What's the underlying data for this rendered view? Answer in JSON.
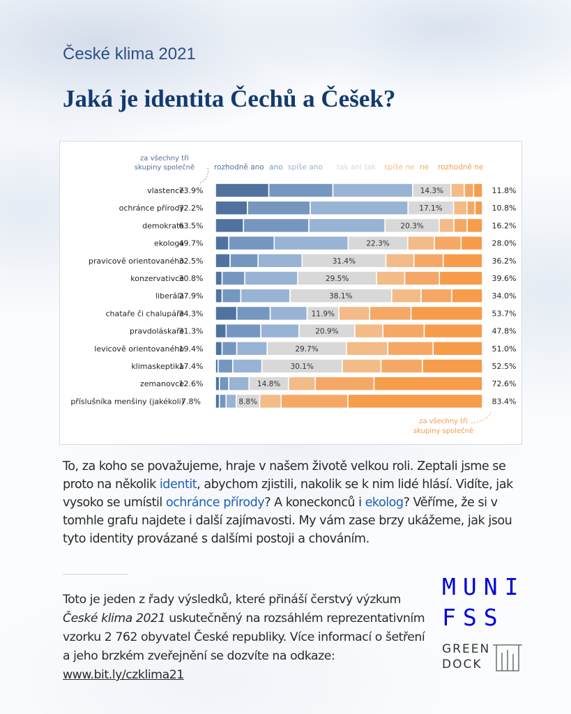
{
  "header": {
    "subtitle": "České klima 2021",
    "title": "Jaká je identita Čechů a Češek?"
  },
  "chart_data": {
    "type": "bar",
    "orientation": "horizontal",
    "stacked": true,
    "normalized": true,
    "annotation_left": [
      "za všechny tři",
      "skupiny společně"
    ],
    "annotation_right": [
      "za všechny tři",
      "skupiny společně"
    ],
    "legend": [
      {
        "name": "rozhodně ano",
        "color": "#4f739e"
      },
      {
        "name": "ano",
        "color": "#7597bf"
      },
      {
        "name": "spíše ano",
        "color": "#98b3d3"
      },
      {
        "name": "tak ani tak",
        "color": "#d8d8d8"
      },
      {
        "name": "spíše ne",
        "color": "#f2bb87"
      },
      {
        "name": "ne",
        "color": "#f5a865"
      },
      {
        "name": "rozhodně ne",
        "color": "#f69c4b"
      }
    ],
    "categories": [
      "vlastence",
      "ochránce přírody",
      "demokrata",
      "ekologa",
      "pravicově orientovaného",
      "konzervativce",
      "liberála",
      "chataře či chalupáře",
      "pravdoláskaře",
      "levicově orientovaného",
      "klimaskeptika",
      "zemanovce",
      "příslušníka menšiny (jakékoli)"
    ],
    "positive_total_labels": [
      "73.9%",
      "72.2%",
      "63.5%",
      "49.7%",
      "32.5%",
      "30.8%",
      "27.9%",
      "34.3%",
      "31.3%",
      "19.4%",
      "17.4%",
      "12.6%",
      "7.8%"
    ],
    "neutral_labels": [
      "14.3%",
      "17.1%",
      "20.3%",
      "22.3%",
      "31.4%",
      "29.5%",
      "38.1%",
      "11.9%",
      "20.9%",
      "29.7%",
      "30.1%",
      "14.8%",
      "8.8%"
    ],
    "negative_total_labels": [
      "11.8%",
      "10.8%",
      "16.2%",
      "28.0%",
      "36.2%",
      "39.6%",
      "34.0%",
      "53.7%",
      "47.8%",
      "51.0%",
      "52.5%",
      "72.6%",
      "83.4%"
    ],
    "series": [
      {
        "name": "rozhodně ano",
        "values": [
          20.0,
          12.0,
          10.5,
          5.0,
          5.5,
          2.5,
          2.5,
          8.0,
          4.0,
          2.5,
          1.0,
          1.5,
          1.5
        ]
      },
      {
        "name": "ano",
        "values": [
          24.0,
          23.5,
          24.5,
          17.0,
          10.5,
          8.5,
          7.0,
          12.5,
          13.0,
          5.5,
          5.5,
          3.5,
          2.5
        ]
      },
      {
        "name": "spíše ano",
        "values": [
          29.9,
          36.7,
          28.5,
          27.7,
          16.5,
          19.8,
          18.4,
          13.8,
          14.3,
          11.4,
          10.9,
          7.6,
          3.8
        ]
      },
      {
        "name": "tak ani tak",
        "values": [
          14.3,
          17.1,
          20.3,
          22.3,
          31.4,
          29.5,
          38.1,
          11.9,
          20.9,
          29.7,
          30.1,
          14.8,
          8.8
        ]
      },
      {
        "name": "spíše ne",
        "values": [
          5.0,
          5.0,
          5.5,
          10.0,
          10.5,
          10.5,
          11.0,
          11.5,
          10.5,
          15.5,
          14.5,
          10.0,
          8.0
        ]
      },
      {
        "name": "ne",
        "values": [
          3.5,
          3.0,
          5.0,
          10.0,
          11.0,
          13.0,
          11.5,
          15.5,
          15.5,
          17.0,
          15.5,
          22.0,
          25.0
        ]
      },
      {
        "name": "rozhodně ne",
        "values": [
          3.3,
          2.8,
          5.7,
          8.0,
          14.7,
          16.1,
          11.5,
          26.7,
          21.8,
          18.5,
          22.5,
          40.6,
          50.4
        ]
      }
    ],
    "xlim": [
      0,
      100
    ]
  },
  "body": {
    "text_1": "To, za koho se považujeme, hraje v našem životě velkou roli. Zeptali jsme se proto na několik ",
    "link_identit": "identit",
    "text_2": ", abychom zjistili, nakolik se k nim lidé hlásí. Vidíte, jak vysoko se umístil ",
    "link_ochrance": "ochránce přírody",
    "text_3": "? A koneckonců i ",
    "link_ekolog": "ekolog",
    "text_4": "? Věříme, že si v tomhle grafu najdete i další zajímavosti. My vám zase brzy ukážeme, jak jsou tyto identity provázané s dalšími postoji a chováním."
  },
  "footer": {
    "text_1": "Toto je jeden z řady výsledků, které přináší čerstvý výzkum ",
    "italic": "České klima 2021",
    "text_2": " uskutečněný na rozsáhlém reprezentativním vzorku 2 762 obyvatel České republiky. Více informací o šetření a jeho brzkém zveřejnění se dozvíte na odkaze: ",
    "link": "www.bit.ly/czklima21"
  },
  "logos": {
    "muni_line1": "MUNI",
    "muni_line2": "FSS",
    "greendock_line1": "GREEN",
    "greendock_line2": "DOCK"
  }
}
